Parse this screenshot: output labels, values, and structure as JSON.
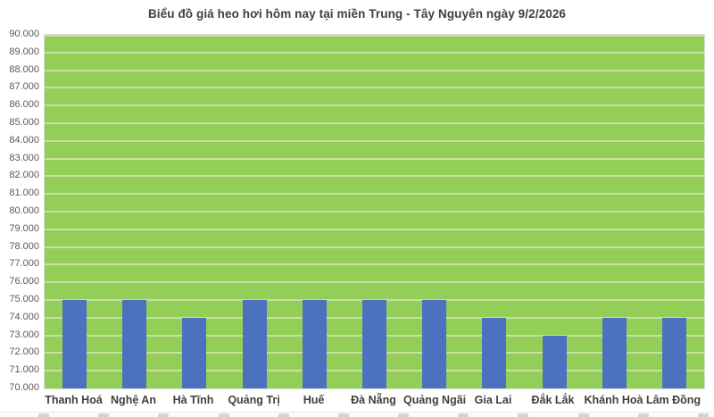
{
  "title": "Biểu đồ giá heo hơi hôm nay tại miền Trung - Tây Nguyên ngày 9/2/2026",
  "chart_data": {
    "type": "bar",
    "title": "Biểu đồ giá heo hơi hôm nay tại miền Trung - Tây Nguyên ngày 9/2/2026",
    "categories": [
      "Thanh Hoá",
      "Nghệ An",
      "Hà Tĩnh",
      "Quảng Trị",
      "Huế",
      "Đà Nẵng",
      "Quảng Ngãi",
      "Gia Lai",
      "Đắk Lắk",
      "Khánh Hoà",
      "Lâm Đồng"
    ],
    "values": [
      75000,
      75000,
      74000,
      75000,
      75000,
      75000,
      75000,
      74000,
      73000,
      74000,
      74000
    ],
    "xlabel": "",
    "ylabel": "",
    "ylim": [
      70000,
      90000
    ],
    "ytick_step": 1000,
    "ytick_labels": [
      "90.000",
      "89.000",
      "88.000",
      "87.000",
      "86.000",
      "85.000",
      "84.000",
      "83.000",
      "82.000",
      "81.000",
      "80.000",
      "79.000",
      "78.000",
      "77.000",
      "76.000",
      "75.000",
      "74.000",
      "73.000",
      "72.000",
      "71.000",
      "70.000"
    ],
    "grid": "horizontal",
    "legend": "none",
    "colors": {
      "bar": "#4C72BF",
      "plot_background": "#92CE58",
      "gridline": "#C6E1A2",
      "title_text": "#3F3F3F",
      "ytick_text": "#595959",
      "xtick_text": "#3F3F3F"
    }
  }
}
